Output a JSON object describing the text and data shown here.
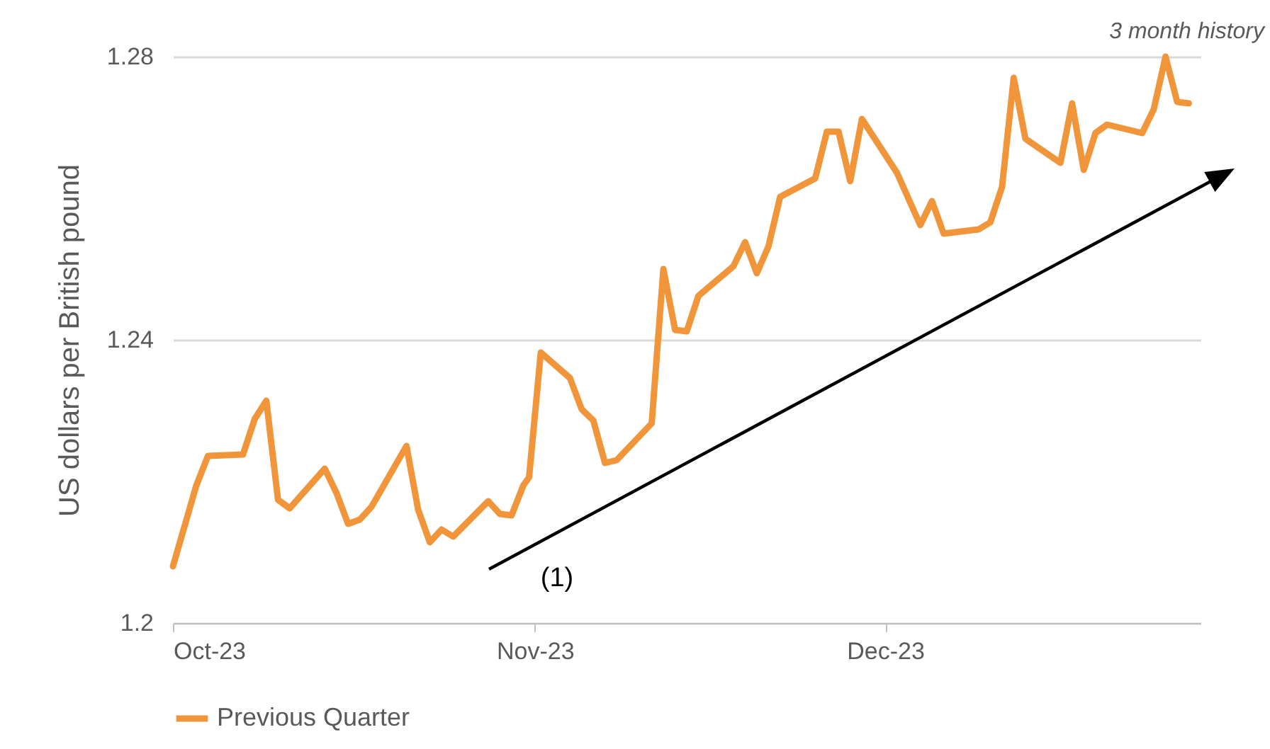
{
  "chart_data": {
    "type": "line",
    "ylabel": "US dollars per British pound",
    "x": [
      "2023-10-01",
      "2023-10-03",
      "2023-10-04",
      "2023-10-07",
      "2023-10-08",
      "2023-10-09",
      "2023-10-10",
      "2023-10-11",
      "2023-10-14",
      "2023-10-15",
      "2023-10-16",
      "2023-10-17",
      "2023-10-18",
      "2023-10-21",
      "2023-10-22",
      "2023-10-23",
      "2023-10-24",
      "2023-10-25",
      "2023-10-28",
      "2023-10-29",
      "2023-10-30",
      "2023-10-31",
      "2023-10-31T12:00",
      "2023-11-01T12:00",
      "2023-11-04",
      "2023-11-05",
      "2023-11-06",
      "2023-11-07",
      "2023-11-08",
      "2023-11-11",
      "2023-11-12",
      "2023-11-13",
      "2023-11-14",
      "2023-11-15",
      "2023-11-18",
      "2023-11-19",
      "2023-11-20",
      "2023-11-21",
      "2023-11-22",
      "2023-11-25",
      "2023-11-26",
      "2023-11-27",
      "2023-11-28",
      "2023-11-29",
      "2023-12-02",
      "2023-12-04",
      "2023-12-05",
      "2023-12-06",
      "2023-12-09",
      "2023-12-10",
      "2023-12-11",
      "2023-12-12",
      "2023-12-13",
      "2023-12-16",
      "2023-12-17",
      "2023-12-18",
      "2023-12-19",
      "2023-12-20",
      "2023-12-23",
      "2023-12-24",
      "2023-12-25",
      "2023-12-26",
      "2023-12-27"
    ],
    "series": [
      {
        "name": "Previous Quarter",
        "color": "#f0953a",
        "values": [
          1.208,
          1.2194,
          1.2236,
          1.2238,
          1.2288,
          1.2314,
          1.2174,
          1.2162,
          1.2218,
          1.2184,
          1.214,
          1.2146,
          1.2164,
          1.225,
          1.216,
          1.2114,
          1.2132,
          1.2122,
          1.2172,
          1.2154,
          1.2152,
          1.2194,
          1.2206,
          1.2382,
          1.2346,
          1.2302,
          1.2286,
          1.2226,
          1.223,
          1.2282,
          1.25,
          1.2414,
          1.2412,
          1.2462,
          1.2504,
          1.2538,
          1.2494,
          1.2532,
          1.2602,
          1.2628,
          1.2694,
          1.2694,
          1.2624,
          1.2712,
          1.2636,
          1.2562,
          1.2596,
          1.255,
          1.2556,
          1.2566,
          1.2616,
          1.277,
          1.2684,
          1.265,
          1.2734,
          1.264,
          1.2692,
          1.2704,
          1.2692,
          1.2726,
          1.28,
          1.2736,
          1.2734
        ]
      }
    ],
    "xlim": [
      "2023-10-01",
      "2023-12-28"
    ],
    "xticks": [
      {
        "value": "2023-10-01",
        "label": "Oct-23"
      },
      {
        "value": "2023-11-01",
        "label": "Nov-23"
      },
      {
        "value": "2023-12-01",
        "label": "Dec-23"
      }
    ],
    "ylim": [
      1.2,
      1.28
    ],
    "yticks": [
      {
        "value": 1.2,
        "label": "1.2"
      },
      1.24,
      1.28
    ],
    "grid": "y",
    "legend": "bottom",
    "marker": "none",
    "line_style": "solid",
    "annotations": [
      "(1)",
      "3 month history"
    ]
  }
}
